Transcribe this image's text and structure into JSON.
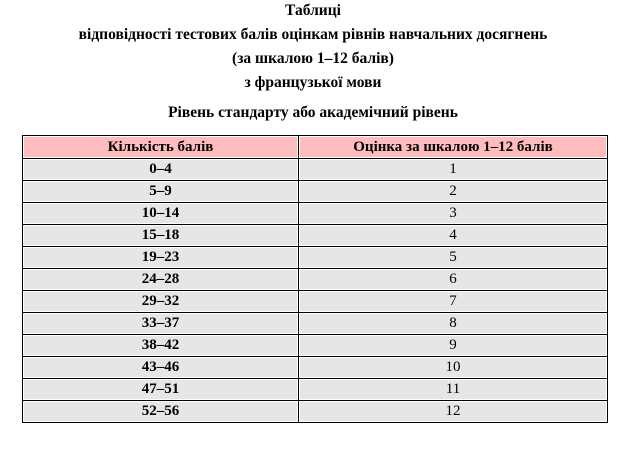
{
  "title": {
    "line1": "Таблиці",
    "line2": "відповідності тестових балів оцінкам рівнів навчальних досягнень",
    "line3": "(за шкалою 1–12 балів)",
    "line4": "з французької мови"
  },
  "subtitle": "Рівень стандарту або академічний рівень",
  "table": {
    "headers": [
      "Кількість балів",
      "Оцінка за шкалою 1–12 балів"
    ],
    "rows": [
      [
        "0–4",
        "1"
      ],
      [
        "5–9",
        "2"
      ],
      [
        "10–14",
        "3"
      ],
      [
        "15–18",
        "4"
      ],
      [
        "19–23",
        "5"
      ],
      [
        "24–28",
        "6"
      ],
      [
        "29–32",
        "7"
      ],
      [
        "33–37",
        "8"
      ],
      [
        "38–42",
        "9"
      ],
      [
        "43–46",
        "10"
      ],
      [
        "47–51",
        "11"
      ],
      [
        "52–56",
        "12"
      ]
    ]
  },
  "colors": {
    "header_bg": "#ffbcbc",
    "row_bg": "#e6e6e6"
  }
}
